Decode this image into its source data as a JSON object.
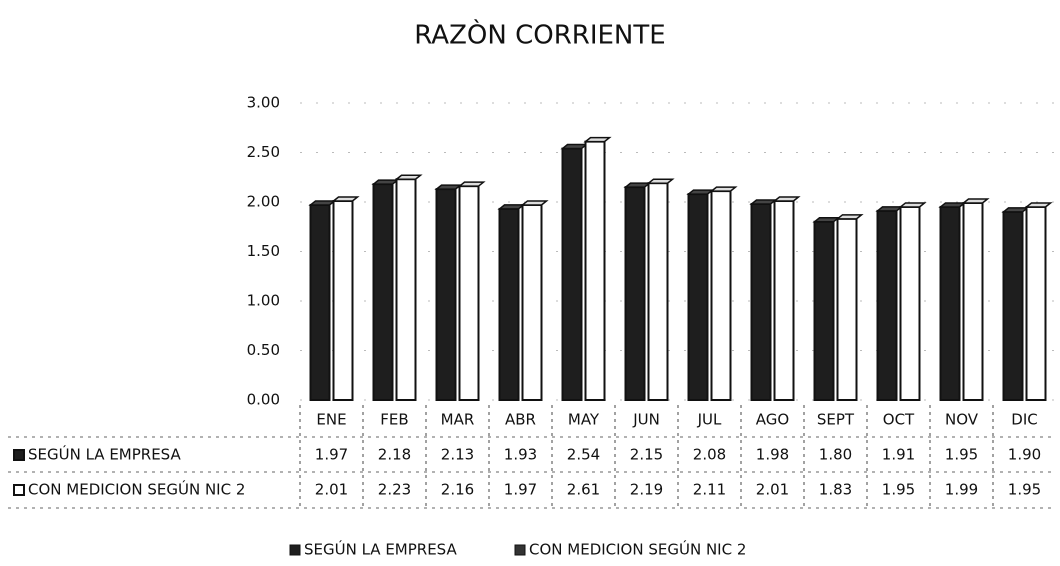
{
  "chart_data": {
    "type": "bar",
    "title": "RAZÒN CORRIENTE",
    "categories": [
      "ENE",
      "FEB",
      "MAR",
      "ABR",
      "MAY",
      "JUN",
      "JUL",
      "AGO",
      "SEPT",
      "OCT",
      "NOV",
      "DIC"
    ],
    "series": [
      {
        "name": "SEGÚN LA EMPRESA",
        "color": "#1e1e1e",
        "values": [
          1.97,
          2.18,
          2.13,
          1.93,
          2.54,
          2.15,
          2.08,
          1.98,
          1.8,
          1.91,
          1.95,
          1.9
        ],
        "value_labels": [
          "1.97",
          "2.18",
          "2.13",
          "1.93",
          "2.54",
          "2.15",
          "2.08",
          "1.98",
          "1.80",
          "1.91",
          "1.95",
          "1.90"
        ]
      },
      {
        "name": "CON MEDICION SEGÚN NIC 2",
        "color": "#ffffff",
        "values": [
          2.01,
          2.23,
          2.16,
          1.97,
          2.61,
          2.19,
          2.11,
          2.01,
          1.83,
          1.95,
          1.99,
          1.95
        ],
        "value_labels": [
          "2.01",
          "2.23",
          "2.16",
          "1.97",
          "2.61",
          "2.19",
          "2.11",
          "2.01",
          "1.83",
          "1.95",
          "1.99",
          "1.95"
        ]
      }
    ],
    "ylim": [
      0,
      3
    ],
    "yticks": [
      {
        "value": 0,
        "label": "0.00"
      },
      {
        "value": 0.5,
        "label": "0.50"
      },
      {
        "value": 1,
        "label": "1.00"
      },
      {
        "value": 1.5,
        "label": "1.50"
      },
      {
        "value": 2,
        "label": "2.00"
      },
      {
        "value": 2.5,
        "label": "2.50"
      },
      {
        "value": 3,
        "label": "3.00"
      }
    ],
    "grid": true,
    "legend": "bottom"
  }
}
